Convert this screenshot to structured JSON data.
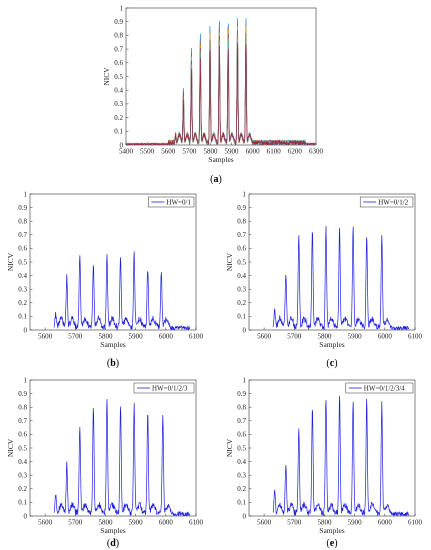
{
  "chart_data": [
    {
      "id": "a",
      "panel_label": "(a)",
      "type": "line",
      "xlabel": "Samples",
      "ylabel": "NICV",
      "xlim": [
        5400,
        6300
      ],
      "ylim": [
        0,
        1
      ],
      "xticks": [
        5400,
        5500,
        5600,
        5700,
        5800,
        5900,
        6000,
        6100,
        6200,
        6300
      ],
      "yticks": [
        0,
        0.1,
        0.2,
        0.3,
        0.4,
        0.5,
        0.6,
        0.7,
        0.8,
        0.9,
        1
      ],
      "grid": false,
      "peaks": [
        {
          "x": 5635,
          "y": 0.06
        },
        {
          "x": 5672,
          "y": 0.39
        },
        {
          "x": 5710,
          "y": 0.69
        },
        {
          "x": 5752,
          "y": 0.8
        },
        {
          "x": 5798,
          "y": 0.86
        },
        {
          "x": 5842,
          "y": 0.9
        },
        {
          "x": 5884,
          "y": 0.9
        },
        {
          "x": 5928,
          "y": 0.91
        },
        {
          "x": 5968,
          "y": 0.93
        }
      ],
      "series_colors": [
        "#0072bd",
        "#d95319",
        "#edb120",
        "#7e2f8e",
        "#77ac30",
        "#4dbeee",
        "#a2142f"
      ]
    },
    {
      "id": "b",
      "panel_label": "(b)",
      "type": "line",
      "xlabel": "Samples",
      "ylabel": "NICV",
      "xlim": [
        5550,
        6100
      ],
      "ylim": [
        0,
        1
      ],
      "xticks": [
        5600,
        5700,
        5800,
        5900,
        6000,
        6100
      ],
      "yticks": [
        0,
        0.1,
        0.2,
        0.3,
        0.4,
        0.5,
        0.6,
        0.7,
        0.8,
        0.9,
        1
      ],
      "legend": "HW=0/1",
      "legend_position": "top-right",
      "peaks": [
        {
          "x": 5635,
          "y": 0.1
        },
        {
          "x": 5672,
          "y": 0.38
        },
        {
          "x": 5715,
          "y": 0.53
        },
        {
          "x": 5760,
          "y": 0.46
        },
        {
          "x": 5805,
          "y": 0.53
        },
        {
          "x": 5850,
          "y": 0.52
        },
        {
          "x": 5895,
          "y": 0.54
        },
        {
          "x": 5940,
          "y": 0.43
        },
        {
          "x": 5985,
          "y": 0.4
        }
      ]
    },
    {
      "id": "c",
      "panel_label": "(c)",
      "type": "line",
      "xlabel": "Samples",
      "ylabel": "NICV",
      "xlim": [
        5550,
        6100
      ],
      "ylim": [
        0,
        1
      ],
      "xticks": [
        5600,
        5700,
        5800,
        5900,
        6000,
        6100
      ],
      "yticks": [
        0,
        0.1,
        0.2,
        0.3,
        0.4,
        0.5,
        0.6,
        0.7,
        0.8,
        0.9,
        1
      ],
      "legend": "HW=0/1/2",
      "legend_position": "top-right",
      "peaks": [
        {
          "x": 5635,
          "y": 0.14
        },
        {
          "x": 5672,
          "y": 0.39
        },
        {
          "x": 5715,
          "y": 0.68
        },
        {
          "x": 5760,
          "y": 0.71
        },
        {
          "x": 5805,
          "y": 0.73
        },
        {
          "x": 5850,
          "y": 0.72
        },
        {
          "x": 5895,
          "y": 0.72
        },
        {
          "x": 5940,
          "y": 0.69
        },
        {
          "x": 5990,
          "y": 0.67
        }
      ]
    },
    {
      "id": "d",
      "panel_label": "(d)",
      "type": "line",
      "xlabel": "Samples",
      "ylabel": "NICV",
      "xlim": [
        5550,
        6100
      ],
      "ylim": [
        0,
        1
      ],
      "xticks": [
        5600,
        5700,
        5800,
        5900,
        6000,
        6100
      ],
      "yticks": [
        0,
        0.1,
        0.2,
        0.3,
        0.4,
        0.5,
        0.6,
        0.7,
        0.8,
        0.9,
        1
      ],
      "legend": "HW=0/1/2/3",
      "legend_position": "top-right",
      "peaks": [
        {
          "x": 5635,
          "y": 0.15
        },
        {
          "x": 5672,
          "y": 0.36
        },
        {
          "x": 5715,
          "y": 0.64
        },
        {
          "x": 5760,
          "y": 0.79
        },
        {
          "x": 5805,
          "y": 0.82
        },
        {
          "x": 5850,
          "y": 0.8
        },
        {
          "x": 5895,
          "y": 0.79
        },
        {
          "x": 5940,
          "y": 0.75
        },
        {
          "x": 5990,
          "y": 0.73
        }
      ]
    },
    {
      "id": "e",
      "panel_label": "(e)",
      "type": "line",
      "xlabel": "Samples",
      "ylabel": "NICV",
      "xlim": [
        5550,
        6100
      ],
      "ylim": [
        0,
        1
      ],
      "xticks": [
        5600,
        5700,
        5800,
        5900,
        6000,
        6100
      ],
      "yticks": [
        0,
        0.1,
        0.2,
        0.3,
        0.4,
        0.5,
        0.6,
        0.7,
        0.8,
        0.9,
        1
      ],
      "legend": "HW=0/1/2/3/4",
      "legend_position": "top-right",
      "peaks": [
        {
          "x": 5635,
          "y": 0.16
        },
        {
          "x": 5672,
          "y": 0.35
        },
        {
          "x": 5715,
          "y": 0.63
        },
        {
          "x": 5760,
          "y": 0.78
        },
        {
          "x": 5805,
          "y": 0.85
        },
        {
          "x": 5850,
          "y": 0.86
        },
        {
          "x": 5895,
          "y": 0.84
        },
        {
          "x": 5940,
          "y": 0.83
        },
        {
          "x": 5990,
          "y": 0.8
        }
      ]
    }
  ]
}
